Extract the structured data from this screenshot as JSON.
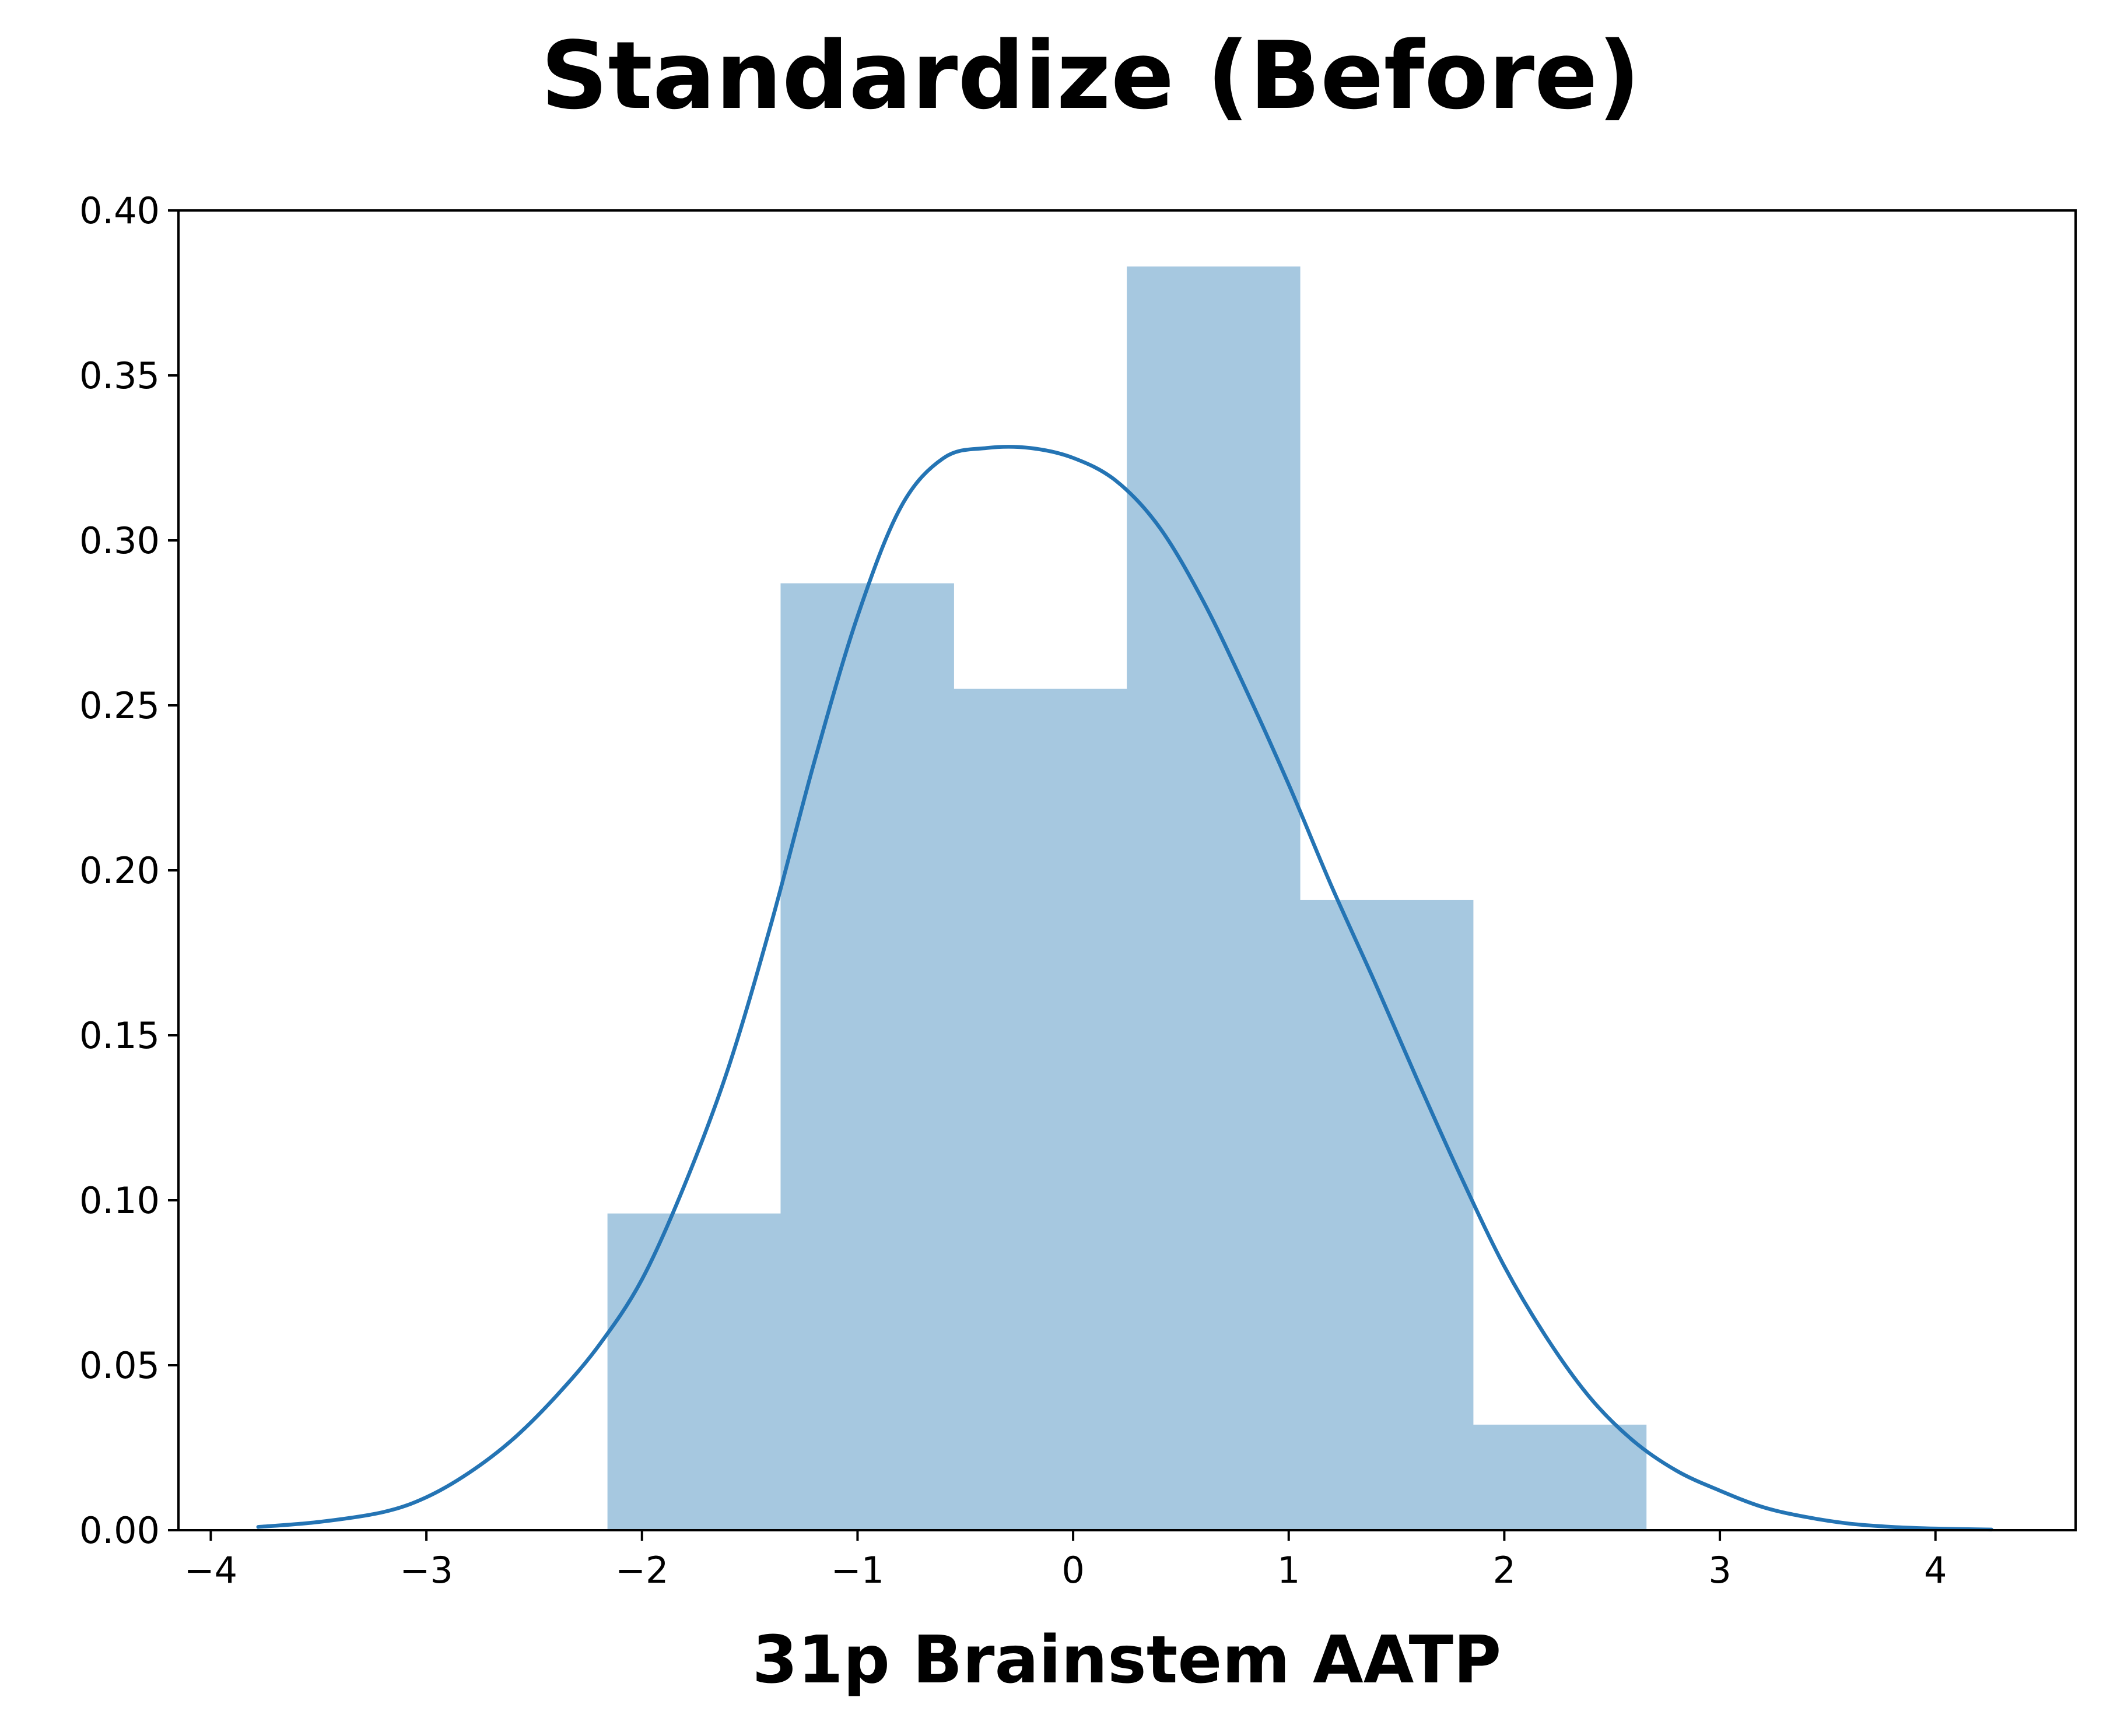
{
  "chart_data": {
    "type": "bar",
    "title": "Standardize (Before)",
    "xlabel": "31p Brainstem AATP",
    "ylabel": "",
    "xlim": [
      -4.15,
      4.65
    ],
    "ylim": [
      0.0,
      0.4
    ],
    "grid": false,
    "xticks": [
      -4,
      -3,
      -2,
      -1,
      0,
      1,
      2,
      3,
      4
    ],
    "xtick_labels": [
      "−4",
      "−3",
      "−2",
      "−1",
      "0",
      "1",
      "2",
      "3",
      "4"
    ],
    "yticks": [
      0.0,
      0.05,
      0.1,
      0.15,
      0.2,
      0.25,
      0.3,
      0.35,
      0.4
    ],
    "ytick_labels": [
      "0.00",
      "0.05",
      "0.10",
      "0.15",
      "0.20",
      "0.25",
      "0.30",
      "0.35",
      "0.40"
    ],
    "series": [
      {
        "name": "histogram",
        "kind": "bar",
        "color": "#a6c8e0",
        "bin_edges": [
          -2.16,
          -1.357,
          -0.554,
          0.249,
          1.052,
          1.855,
          2.658
        ],
        "values": [
          0.096,
          0.287,
          0.255,
          0.383,
          0.191,
          0.032
        ]
      },
      {
        "name": "kde",
        "kind": "line",
        "color": "#2474b4",
        "x": [
          -3.78,
          -3.5,
          -3.2,
          -3.0,
          -2.8,
          -2.6,
          -2.4,
          -2.2,
          -2.0,
          -1.8,
          -1.6,
          -1.4,
          -1.2,
          -1.0,
          -0.8,
          -0.6,
          -0.4,
          -0.2,
          0.0,
          0.2,
          0.4,
          0.6,
          0.8,
          1.0,
          1.2,
          1.4,
          1.6,
          1.8,
          2.0,
          2.2,
          2.4,
          2.6,
          2.8,
          3.0,
          3.2,
          3.4,
          3.6,
          3.8,
          4.0,
          4.26
        ],
        "y": [
          0.001,
          0.0025,
          0.0055,
          0.01,
          0.0175,
          0.0275,
          0.0405,
          0.056,
          0.076,
          0.105,
          0.14,
          0.184,
          0.233,
          0.277,
          0.31,
          0.325,
          0.328,
          0.328,
          0.325,
          0.318,
          0.304,
          0.282,
          0.255,
          0.226,
          0.195,
          0.166,
          0.136,
          0.107,
          0.08,
          0.058,
          0.04,
          0.027,
          0.018,
          0.012,
          0.007,
          0.004,
          0.002,
          0.001,
          0.0005,
          0.0002
        ]
      }
    ]
  }
}
